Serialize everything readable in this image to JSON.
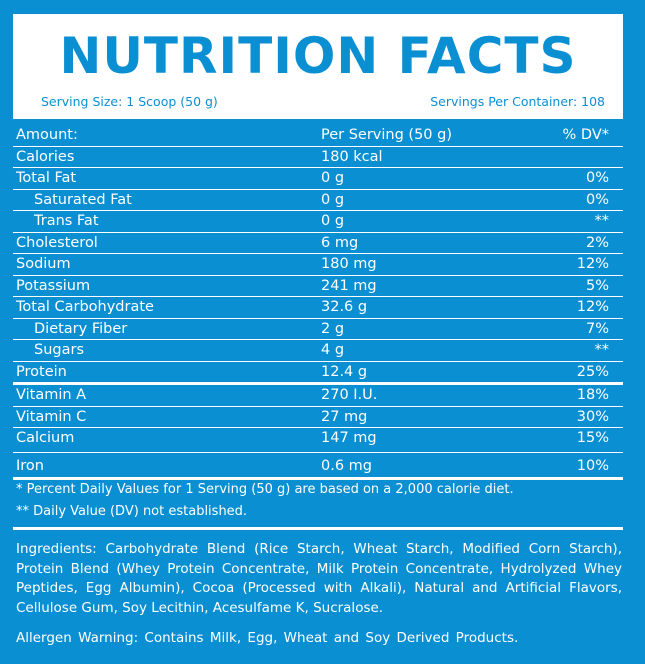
{
  "title": "NUTRITION FACTS",
  "serving_size": "Serving Size: 1  Scoop (50 g)",
  "servings_per_container": "Servings Per Container: 108",
  "header_row": {
    "label": "Amount:",
    "per_serving": "Per Serving (50 g)",
    "dv": "% DV*"
  },
  "rows": [
    {
      "label": "Calories",
      "amount": "180 kcal",
      "dv": ""
    },
    {
      "label": "Total Fat",
      "amount": "0 g",
      "dv": "0%"
    },
    {
      "label": "Saturated Fat",
      "amount": "0 g",
      "dv": "0%"
    },
    {
      "label": "Trans Fat",
      "amount": "0 g",
      "dv": "**"
    },
    {
      "label": "Cholesterol",
      "amount": "6 mg",
      "dv": "2%"
    },
    {
      "label": "Sodium",
      "amount": "180 mg",
      "dv": "12%"
    },
    {
      "label": "Potassium",
      "amount": "241 mg",
      "dv": "5%"
    },
    {
      "label": "Total Carbohydrate",
      "amount": "32.6 g",
      "dv": "12%"
    },
    {
      "label": "Dietary Fiber",
      "amount": "2 g",
      "dv": "7%"
    },
    {
      "label": "Sugars",
      "amount": "4 g",
      "dv": "**"
    },
    {
      "label": "Protein",
      "amount": "12.4 g",
      "dv": "25%"
    },
    {
      "label": "Vitamin A",
      "amount": "270 I.U.",
      "dv": "18%"
    },
    {
      "label": "Vitamin C",
      "amount": "27 mg",
      "dv": "30%"
    },
    {
      "label": "Calcium",
      "amount": "147 mg",
      "dv": "15%"
    },
    {
      "label": "Iron",
      "amount": "0.6 mg",
      "dv": "10%"
    }
  ],
  "footnote_1": "* Percent Daily Values for 1 Serving (50 g) are based on a 2,000 calorie diet.",
  "footnote_2": "** Daily Value (DV) not established.",
  "ingredients": "Ingredients: Carbohydrate Blend (Rice Starch, Wheat Starch, Modified Corn Starch), Protein Blend (Whey Protein Concentrate, Milk Protein Concentrate, Hydrolyzed Whey Peptides, Egg Albumin), Cocoa (Processed with Alkali), Natural and Artificial Flavors, Cellulose Gum, Soy Lecithin, Acesulfame K, Sucralose.",
  "allergen": "Allergen Warning: Contains Milk, Egg, Wheat and Soy Derived Products.",
  "colors": {
    "background": "#0a8fd3",
    "panel": "#ffffff"
  }
}
